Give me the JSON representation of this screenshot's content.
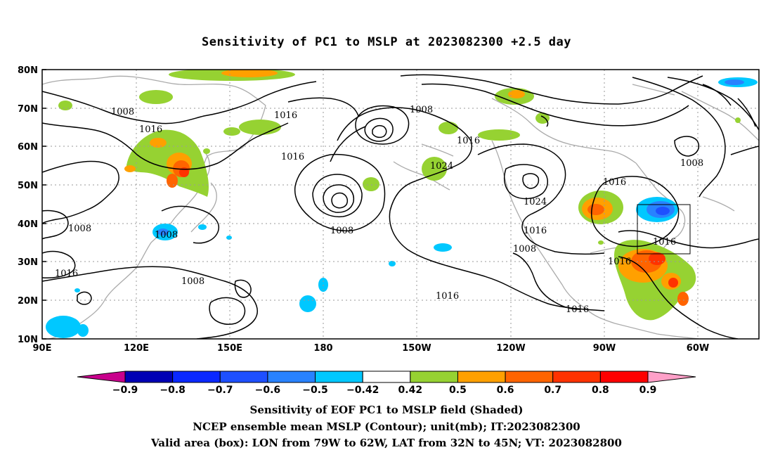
{
  "title": "Sensitivity of PC1 to MSLP at 2023082300 +2.5 day",
  "map": {
    "lat_ticks": [
      "80N",
      "70N",
      "60N",
      "50N",
      "40N",
      "30N",
      "20N",
      "10N"
    ],
    "lon_ticks": [
      "90E",
      "120E",
      "150E",
      "180",
      "150W",
      "120W",
      "90W",
      "60W"
    ],
    "contour_labels": [
      "1008",
      "1016",
      "1016",
      "1008",
      "1016",
      "1016",
      "1024",
      "1016",
      "1008",
      "1008",
      "1024",
      "1016",
      "1016",
      "1008",
      "1008",
      "1016",
      "1016",
      "1008",
      "1016",
      "1016"
    ],
    "box": {
      "lon_from": "79W",
      "lon_to": "62W",
      "lat_from": "32N",
      "lat_to": "45N"
    }
  },
  "colorbar": {
    "labels": [
      "-0.9",
      "-0.8",
      "-0.7",
      "-0.6",
      "-0.5",
      "-0.42",
      "0.42",
      "0.5",
      "0.6",
      "0.7",
      "0.8",
      "0.9"
    ],
    "colors": [
      "#c8008c",
      "#0000b4",
      "#0a28ff",
      "#1e50ff",
      "#2882ff",
      "#00c8ff",
      "#ffffff",
      "#96d232",
      "#ffa000",
      "#ff6400",
      "#ff3200",
      "#ff0000",
      "#ffa0c8"
    ]
  },
  "captions": [
    "Sensitivity of EOF PC1 to MSLP field (Shaded)",
    "NCEP ensemble mean MSLP (Contour); unit(mb); IT:2023082300",
    "Valid area (box): LON from 79W to 62W, LAT from 32N to 45N; VT: 2023082800"
  ]
}
